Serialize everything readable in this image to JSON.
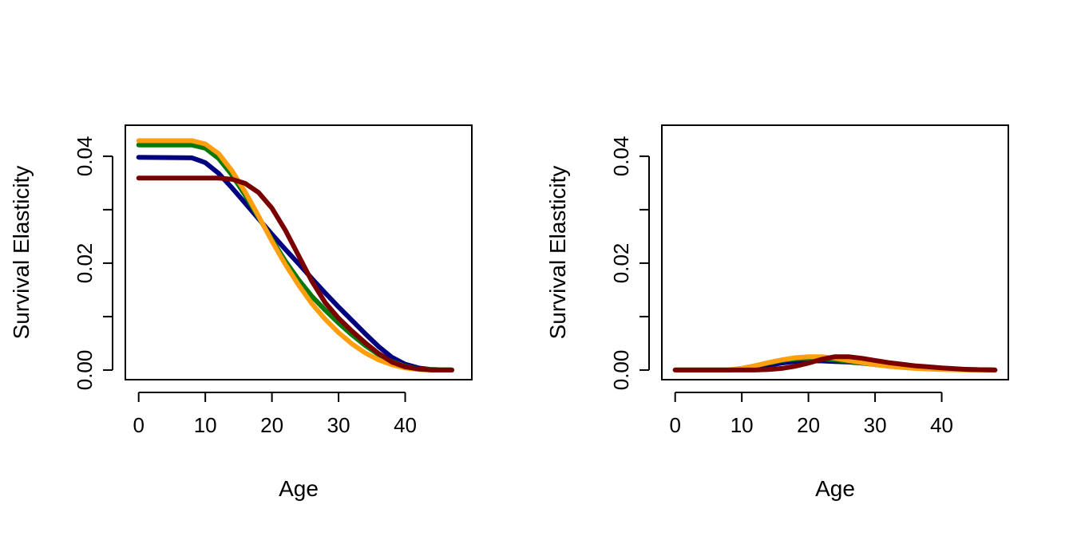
{
  "chart_data": [
    {
      "type": "line",
      "title": "",
      "xlabel": "Age",
      "ylabel": "Survival Elasticity",
      "xlim": [
        -2,
        50
      ],
      "ylim": [
        -0.0018,
        0.0458
      ],
      "x_ticks": [
        0,
        10,
        20,
        30,
        40
      ],
      "x_tick_labels": [
        "0",
        "10",
        "20",
        "30",
        "40"
      ],
      "y_ticks": [
        0.0,
        0.01,
        0.02,
        0.03,
        0.04
      ],
      "y_tick_labels": [
        "0.00",
        "",
        "0.02",
        "",
        "0.04"
      ],
      "grid": false,
      "legend": "none",
      "series": [
        {
          "color": "#000080",
          "x": [
            0,
            8,
            10,
            12,
            14,
            16,
            18,
            20,
            22,
            24,
            26,
            28,
            30,
            32,
            34,
            36,
            38,
            40,
            42,
            44,
            47
          ],
          "values": [
            0.0398,
            0.0397,
            0.0388,
            0.0368,
            0.0341,
            0.0312,
            0.0283,
            0.0254,
            0.0226,
            0.0199,
            0.0171,
            0.0144,
            0.0118,
            0.0093,
            0.0068,
            0.0044,
            0.0024,
            0.0011,
            0.0004,
            0.0001,
            0.0
          ]
        },
        {
          "color": "#087808",
          "x": [
            0,
            8,
            10,
            12,
            14,
            16,
            18,
            20,
            22,
            24,
            26,
            28,
            30,
            32,
            34,
            36,
            38,
            40,
            42,
            44,
            47
          ],
          "values": [
            0.0421,
            0.0421,
            0.0415,
            0.0396,
            0.0365,
            0.0327,
            0.0286,
            0.0244,
            0.0204,
            0.0169,
            0.0138,
            0.0112,
            0.0088,
            0.0066,
            0.0046,
            0.0029,
            0.0016,
            0.0007,
            0.0002,
            0.0001,
            0.0
          ]
        },
        {
          "color": "#FF9E0E",
          "x": [
            0,
            8,
            10,
            12,
            14,
            16,
            18,
            20,
            22,
            24,
            26,
            28,
            30,
            32,
            34,
            36,
            38,
            40,
            42,
            44,
            47
          ],
          "values": [
            0.0429,
            0.0429,
            0.0423,
            0.0405,
            0.0373,
            0.0333,
            0.0288,
            0.0241,
            0.0198,
            0.0159,
            0.0124,
            0.0095,
            0.007,
            0.0049,
            0.0032,
            0.0019,
            0.001,
            0.0004,
            0.0001,
            0.0,
            0.0
          ]
        },
        {
          "color": "#7A0000",
          "x": [
            0,
            12,
            14,
            16,
            18,
            20,
            22,
            24,
            26,
            28,
            30,
            32,
            34,
            36,
            38,
            40,
            42,
            44,
            47
          ],
          "values": [
            0.0359,
            0.0359,
            0.0357,
            0.0349,
            0.0332,
            0.0303,
            0.0262,
            0.0214,
            0.0166,
            0.0126,
            0.0097,
            0.0073,
            0.0051,
            0.0031,
            0.0015,
            0.0006,
            0.0002,
            0.0,
            0.0
          ]
        }
      ]
    },
    {
      "type": "line",
      "title": "",
      "xlabel": "Age",
      "ylabel": "Survival Elasticity",
      "xlim": [
        -2,
        50
      ],
      "ylim": [
        -0.0018,
        0.0458
      ],
      "x_ticks": [
        0,
        10,
        20,
        30,
        40
      ],
      "x_tick_labels": [
        "0",
        "10",
        "20",
        "30",
        "40"
      ],
      "y_ticks": [
        0.0,
        0.01,
        0.02,
        0.03,
        0.04
      ],
      "y_tick_labels": [
        "0.00",
        "",
        "0.02",
        "",
        "0.04"
      ],
      "grid": false,
      "legend": "none",
      "series": [
        {
          "color": "#000080",
          "x": [
            0,
            8,
            10,
            12,
            14,
            16,
            18,
            20,
            22,
            24,
            26,
            28,
            30,
            32,
            34,
            36,
            38,
            40,
            44,
            48
          ],
          "values": [
            0.0,
            0.0,
            0.0002,
            0.0005,
            0.0009,
            0.0013,
            0.0016,
            0.0017,
            0.0017,
            0.0016,
            0.0015,
            0.0013,
            0.0011,
            0.0009,
            0.0007,
            0.0005,
            0.0004,
            0.0002,
            0.0001,
            0.0
          ]
        },
        {
          "color": "#087808",
          "x": [
            0,
            8,
            10,
            12,
            14,
            16,
            18,
            20,
            22,
            24,
            26,
            28,
            30,
            32,
            34,
            36,
            38,
            40,
            44,
            48
          ],
          "values": [
            0.0,
            0.0,
            0.0003,
            0.0008,
            0.0013,
            0.0018,
            0.0021,
            0.0022,
            0.0021,
            0.0019,
            0.0016,
            0.0013,
            0.001,
            0.0008,
            0.0006,
            0.0004,
            0.0003,
            0.0002,
            0.0001,
            0.0
          ]
        },
        {
          "color": "#FF9E0E",
          "x": [
            0,
            8,
            10,
            12,
            14,
            16,
            18,
            20,
            22,
            24,
            26,
            28,
            30,
            32,
            34,
            36,
            38,
            40,
            44,
            48
          ],
          "values": [
            0.0,
            0.0,
            0.0003,
            0.0008,
            0.0014,
            0.0019,
            0.0023,
            0.0025,
            0.0025,
            0.0022,
            0.0018,
            0.0014,
            0.001,
            0.0007,
            0.0005,
            0.0003,
            0.0002,
            0.0001,
            0.0,
            0.0
          ]
        },
        {
          "color": "#7A0000",
          "x": [
            0,
            12,
            14,
            16,
            18,
            20,
            22,
            24,
            26,
            28,
            30,
            32,
            34,
            36,
            38,
            40,
            44,
            48
          ],
          "values": [
            0.0,
            0.0,
            0.0001,
            0.0003,
            0.0007,
            0.0013,
            0.002,
            0.0025,
            0.0025,
            0.0022,
            0.0018,
            0.0014,
            0.0011,
            0.0008,
            0.0006,
            0.0004,
            0.0001,
            0.0
          ]
        }
      ]
    }
  ]
}
